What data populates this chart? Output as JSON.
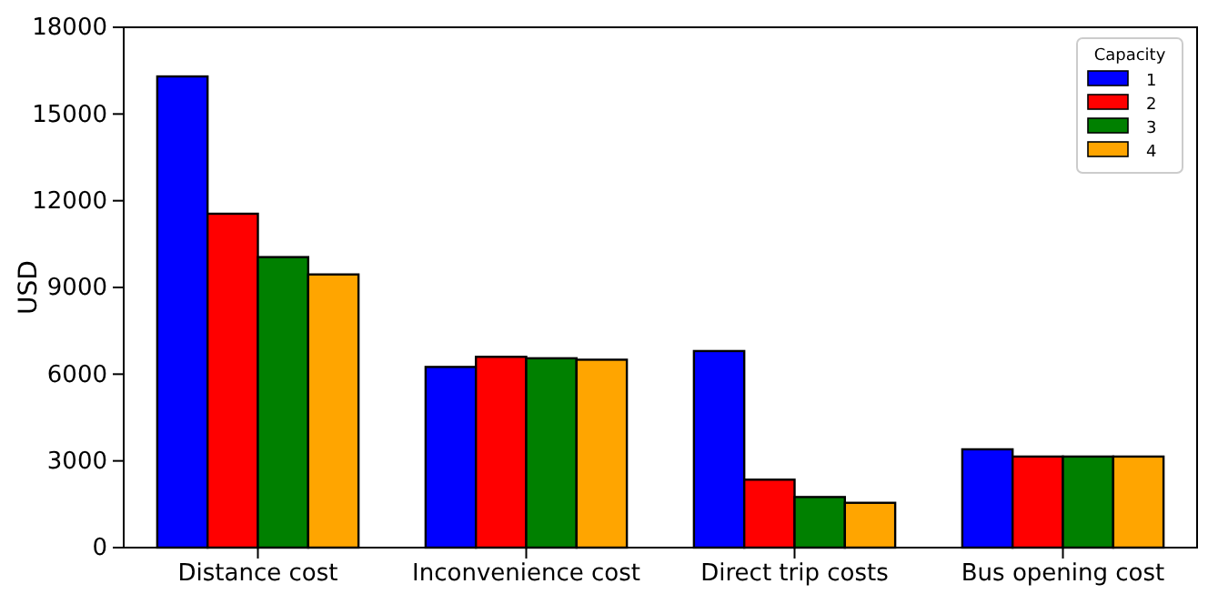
{
  "chart_data": {
    "type": "bar",
    "ylabel": "USD",
    "legend_title": "Capacity",
    "legend": "top right",
    "categories": [
      "Distance cost",
      "Inconvenience cost",
      "Direct trip costs",
      "Bus opening cost"
    ],
    "series": [
      {
        "name": "1",
        "color": "#0000ff",
        "values": [
          16300,
          6250,
          6800,
          3400
        ]
      },
      {
        "name": "2",
        "color": "#ff0000",
        "values": [
          11550,
          6600,
          2350,
          3150
        ]
      },
      {
        "name": "3",
        "color": "#008000",
        "values": [
          10050,
          6550,
          1750,
          3150
        ]
      },
      {
        "name": "4",
        "color": "#ffa500",
        "values": [
          9450,
          6500,
          1550,
          3150
        ]
      }
    ],
    "ylim": [
      0,
      18000
    ],
    "yticks": [
      0,
      3000,
      6000,
      9000,
      12000,
      15000,
      18000
    ],
    "grid": false
  }
}
